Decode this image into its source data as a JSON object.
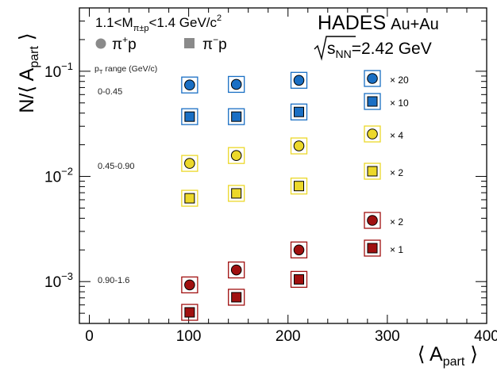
{
  "chart_data": {
    "type": "scatter",
    "x_axis": {
      "label_main": "⟨ A",
      "label_sub": "part",
      "label_close": " ⟩",
      "range": [
        -10,
        400
      ],
      "ticks": [
        0,
        100,
        200,
        300,
        400
      ],
      "scale": "linear"
    },
    "y_axis": {
      "label_main": "N/⟨ A",
      "label_sub": "part",
      "label_close": " ⟩",
      "range": [
        0.0004,
        0.4
      ],
      "scale": "log",
      "ticks": [
        {
          "value": 0.001,
          "mantissa": "10",
          "exp": "−3"
        },
        {
          "value": 0.01,
          "mantissa": "10",
          "exp": "−2"
        },
        {
          "value": 0.1,
          "mantissa": "10",
          "exp": "−1"
        }
      ]
    },
    "header": {
      "selection_prefix": "1.1<M",
      "selection_sub": "π±p",
      "selection_suffix": "<1.4 GeV/c",
      "selection_sup": "2",
      "experiment": "HADES",
      "system": "Au+Au",
      "energy_sqrt": "s",
      "energy_sub": "NN",
      "energy_value": "=2.42 GeV"
    },
    "particle_legend": [
      {
        "marker": "circle",
        "base": "π",
        "sup": "+",
        "suffix": "p"
      },
      {
        "marker": "square",
        "base": "π",
        "sup": "−",
        "suffix": "p"
      }
    ],
    "pt_title": {
      "p": "p",
      "sub": "T",
      "rest": " range (GeV/c)"
    },
    "pt_bins": [
      {
        "label": "0-0.45",
        "color": "#1a6fc4"
      },
      {
        "label": "0.45-0.90",
        "color": "#ecd82a"
      },
      {
        "label": "0.90-1.6",
        "color": "#a01010"
      }
    ],
    "scale_legend": [
      {
        "marker": "circle",
        "color": "#1a6fc4",
        "text": "× 20"
      },
      {
        "marker": "square",
        "color": "#1a6fc4",
        "text": "× 10"
      },
      {
        "marker": "circle",
        "color": "#ecd82a",
        "text": "× 4"
      },
      {
        "marker": "square",
        "color": "#ecd82a",
        "text": "× 2"
      },
      {
        "marker": "circle",
        "color": "#a01010",
        "text": "× 2"
      },
      {
        "marker": "square",
        "color": "#a01010",
        "text": "× 1"
      }
    ],
    "series": [
      {
        "name": "π+p 0-0.45 (× 20)",
        "marker": "circle",
        "color": "#1a6fc4",
        "x": [
          101,
          148,
          211
        ],
        "y": [
          0.074,
          0.075,
          0.082
        ]
      },
      {
        "name": "π−p 0-0.45 (× 10)",
        "marker": "square",
        "color": "#1a6fc4",
        "x": [
          101,
          148,
          211
        ],
        "y": [
          0.037,
          0.037,
          0.041
        ]
      },
      {
        "name": "π+p 0.45-0.90 (× 4)",
        "marker": "circle",
        "color": "#ecd82a",
        "x": [
          101,
          148,
          211
        ],
        "y": [
          0.0133,
          0.0158,
          0.0195
        ]
      },
      {
        "name": "π−p 0.45-0.90 (× 2)",
        "marker": "square",
        "color": "#ecd82a",
        "x": [
          101,
          148,
          211
        ],
        "y": [
          0.0062,
          0.0069,
          0.0081
        ]
      },
      {
        "name": "π+p 0.90-1.6 (× 2)",
        "marker": "circle",
        "color": "#a01010",
        "x": [
          101,
          148,
          211
        ],
        "y": [
          0.00093,
          0.00129,
          0.002
        ]
      },
      {
        "name": "π−p 0.90-1.6 (× 1)",
        "marker": "square",
        "color": "#a01010",
        "x": [
          101,
          148,
          211
        ],
        "y": [
          0.00051,
          0.00071,
          0.00105
        ]
      }
    ],
    "grid": false
  }
}
